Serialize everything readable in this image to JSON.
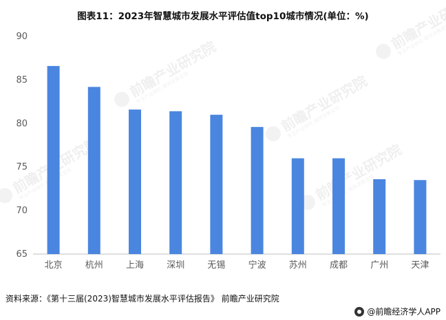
{
  "chart_data": {
    "type": "bar",
    "title": "图表11：2023年智慧城市发展水平评估值top10城市情况(单位：%)",
    "categories": [
      "北京",
      "杭州",
      "上海",
      "深圳",
      "无锡",
      "宁波",
      "苏州",
      "成都",
      "广州",
      "天津"
    ],
    "values": [
      86.6,
      84.2,
      81.6,
      81.4,
      81.0,
      79.6,
      76.0,
      76.0,
      73.6,
      73.5
    ],
    "ylim": [
      65,
      90
    ],
    "yticks": [
      65,
      70,
      75,
      80,
      85,
      90
    ],
    "xlabel": "",
    "ylabel": "",
    "bar_color": "#4a86e0",
    "grid": false,
    "legend": "none"
  },
  "source": "资料来源：《第十三届(2023)智慧城市发展水平评估报告》 前瞻产业研究院",
  "credit": "@前瞻经济学人APP",
  "watermark": {
    "logo_text": "前瞻产业研究院",
    "sub_text": "专注产业研究 提供决策支持"
  }
}
